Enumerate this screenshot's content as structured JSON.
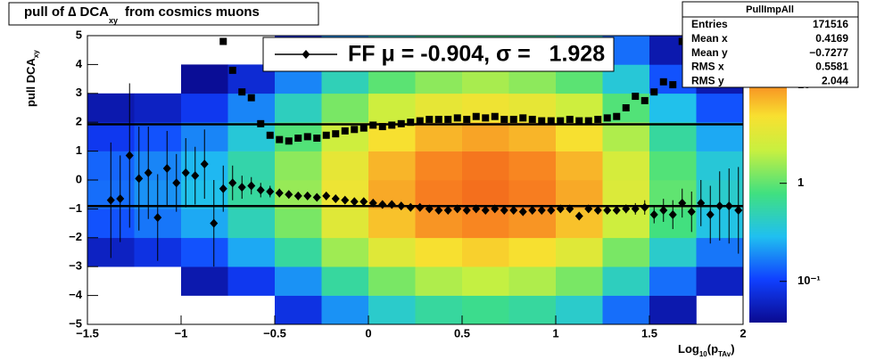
{
  "chart_data": {
    "type": "heatmap",
    "title": "pull of ∆ DCA",
    "title_sub": "xy",
    "title_rest": "from cosmics muons",
    "y_label": "pull DCA",
    "y_label_sub": "xy",
    "x_label": "Log",
    "x_label_sub": "10",
    "x_label_mid": "(p",
    "x_label_sub2": "TAv",
    "x_label_end": ")",
    "xlim": [
      -1.5,
      2
    ],
    "xticks": [
      {
        "value": -1.5,
        "label": "−1.5"
      },
      {
        "value": -1,
        "label": "−1"
      },
      {
        "value": -0.5,
        "label": "−0.5"
      },
      0,
      0.5,
      1,
      1.5,
      2
    ],
    "ylim": [
      -5,
      5
    ],
    "yticks": [
      {
        "value": -5,
        "label": "−5"
      },
      {
        "value": -4,
        "label": "−4"
      },
      {
        "value": -3,
        "label": "−3"
      },
      {
        "value": -2,
        "label": "−2"
      },
      {
        "value": -1,
        "label": "−1"
      },
      0,
      1,
      2,
      3,
      4,
      5
    ],
    "zlim": [
      0.038,
      32
    ],
    "zticks": [
      {
        "value": 0.1,
        "label": "10⁻¹"
      },
      1,
      10
    ],
    "z_log": true,
    "x_edges": [
      -1.5,
      -1.25,
      -1,
      -0.75,
      -0.5,
      -0.25,
      0,
      0.25,
      0.5,
      0.75,
      1,
      1.25,
      1.5,
      1.75,
      2
    ],
    "y_edges": [
      -5,
      -4,
      -3,
      -2,
      -1,
      0,
      1,
      2,
      3,
      4,
      5
    ],
    "z": [
      [
        0.01,
        0.01,
        0.02,
        0.03,
        0.08,
        0.2,
        0.4,
        0.6,
        0.7,
        0.6,
        0.4,
        0.15,
        0.05,
        0.02
      ],
      [
        0.02,
        0.03,
        0.05,
        0.09,
        0.2,
        0.6,
        1.2,
        1.8,
        2.1,
        1.8,
        1.2,
        0.45,
        0.15,
        0.06
      ],
      [
        0.06,
        0.08,
        0.12,
        0.24,
        0.6,
        1.6,
        3.2,
        4.8,
        5.6,
        4.8,
        3.2,
        1.2,
        0.4,
        0.16
      ],
      [
        0.12,
        0.16,
        0.24,
        0.48,
        1.2,
        3.2,
        6.4,
        9.6,
        11,
        9.6,
        6.4,
        2.4,
        0.8,
        0.32
      ],
      [
        0.15,
        0.2,
        0.3,
        0.6,
        1.5,
        4,
        8,
        12,
        14,
        12,
        8,
        3,
        1,
        0.4
      ],
      [
        0.14,
        0.18,
        0.27,
        0.54,
        1.4,
        3.6,
        7.2,
        11,
        13,
        11,
        7.2,
        2.7,
        0.9,
        0.36
      ],
      [
        0.09,
        0.12,
        0.18,
        0.36,
        0.9,
        2.4,
        4.8,
        7.2,
        8.4,
        7.2,
        4.8,
        1.8,
        0.6,
        0.24
      ],
      [
        0.05,
        0.06,
        0.09,
        0.18,
        0.45,
        1.2,
        2.4,
        3.6,
        4.2,
        3.6,
        2.4,
        0.9,
        0.3,
        0.12
      ],
      [
        0.02,
        0.02,
        0.04,
        0.07,
        0.18,
        0.48,
        0.96,
        1.4,
        1.7,
        1.4,
        0.96,
        0.36,
        0.12,
        0.05
      ],
      [
        0.01,
        0.01,
        0.02,
        0.03,
        0.08,
        0.2,
        0.4,
        0.6,
        0.7,
        0.6,
        0.4,
        0.15,
        0.05,
        0.02
      ]
    ],
    "profile": {
      "x": [
        -1.375,
        -1.325,
        -1.275,
        -1.225,
        -1.175,
        -1.125,
        -1.075,
        -1.025,
        -0.975,
        -0.925,
        -0.875,
        -0.825,
        -0.775,
        -0.725,
        -0.675,
        -0.625,
        -0.575,
        -0.525,
        -0.475,
        -0.425,
        -0.375,
        -0.325,
        -0.275,
        -0.225,
        -0.175,
        -0.125,
        -0.075,
        -0.025,
        0.025,
        0.075,
        0.125,
        0.175,
        0.225,
        0.275,
        0.325,
        0.375,
        0.425,
        0.475,
        0.525,
        0.575,
        0.625,
        0.675,
        0.725,
        0.775,
        0.825,
        0.875,
        0.925,
        0.975,
        1.025,
        1.075,
        1.125,
        1.175,
        1.225,
        1.275,
        1.325,
        1.375,
        1.425,
        1.475,
        1.525,
        1.575,
        1.625,
        1.675,
        1.725,
        1.775,
        1.825,
        1.875,
        1.925,
        1.975
      ],
      "mean": [
        -0.7,
        -0.65,
        0.85,
        0.05,
        0.25,
        -1.3,
        0.4,
        -0.1,
        0.25,
        0.15,
        0.55,
        -1.5,
        -0.3,
        -0.1,
        -0.25,
        -0.2,
        -0.35,
        -0.4,
        -0.45,
        -0.5,
        -0.55,
        -0.55,
        -0.6,
        -0.55,
        -0.65,
        -0.7,
        -0.75,
        -0.75,
        -0.8,
        -0.85,
        -0.85,
        -0.9,
        -0.95,
        -0.95,
        -1.0,
        -1.05,
        -1.05,
        -1.0,
        -1.05,
        -1.0,
        -1.05,
        -1.0,
        -1.05,
        -1.05,
        -1.1,
        -1.05,
        -1.05,
        -1.05,
        -1.0,
        -1.0,
        -1.25,
        -1.0,
        -1.05,
        -1.05,
        -1.05,
        -1.0,
        -1.0,
        -0.95,
        -1.2,
        -1.05,
        -1.2,
        -0.8,
        -1.1,
        -0.8,
        -1.2,
        -0.9,
        -0.9,
        -1.05
      ],
      "mean_err": [
        2,
        1.5,
        2.5,
        1.8,
        1.6,
        1.5,
        1.3,
        1.0,
        1.2,
        1.0,
        1.2,
        1.5,
        0.8,
        0.6,
        0.4,
        0.3,
        0.25,
        0.2,
        0.15,
        0.12,
        0.1,
        0.05,
        0.05,
        0.05,
        0.05,
        0.05,
        0.05,
        0.05,
        0.05,
        0.05,
        0.05,
        0.05,
        0.05,
        0.05,
        0.05,
        0.05,
        0.05,
        0.05,
        0.05,
        0.05,
        0.05,
        0.05,
        0.05,
        0.05,
        0.05,
        0.05,
        0.05,
        0.05,
        0.05,
        0.05,
        0.05,
        0.06,
        0.08,
        0.1,
        0.12,
        0.15,
        0.2,
        0.25,
        0.3,
        0.4,
        0.5,
        0.5,
        0.7,
        0.8,
        1.0,
        1.2,
        1.3,
        1.5
      ],
      "rms": [
        null,
        null,
        null,
        null,
        null,
        null,
        null,
        null,
        null,
        null,
        null,
        null,
        4.8,
        3.8,
        3.05,
        2.85,
        1.95,
        1.55,
        1.4,
        1.35,
        1.45,
        1.5,
        1.45,
        1.55,
        1.6,
        1.7,
        1.75,
        1.8,
        1.9,
        1.85,
        1.9,
        1.95,
        2.0,
        2.05,
        2.1,
        2.1,
        2.1,
        2.15,
        2.1,
        2.2,
        2.15,
        2.2,
        2.1,
        2.1,
        2.15,
        2.1,
        2.05,
        2.05,
        2.05,
        2.1,
        2.05,
        2.05,
        2.1,
        2.15,
        2.2,
        2.5,
        2.9,
        2.75,
        3.05,
        3.4,
        3.3,
        4.8,
        3.95,
        4.7,
        null,
        null,
        null,
        null
      ]
    },
    "fit": {
      "mu": -0.904,
      "sigma": 1.928
    },
    "legend_label": "FF μ = -0.904, σ =   1.928",
    "stats": {
      "name": "PullImpAll",
      "rows": [
        [
          "Entries",
          "171516"
        ],
        [
          "Mean x",
          "0.4169"
        ],
        [
          "Mean y",
          "−0.7277"
        ],
        [
          "RMS x",
          "0.5581"
        ],
        [
          "RMS y",
          "2.044"
        ]
      ]
    }
  }
}
